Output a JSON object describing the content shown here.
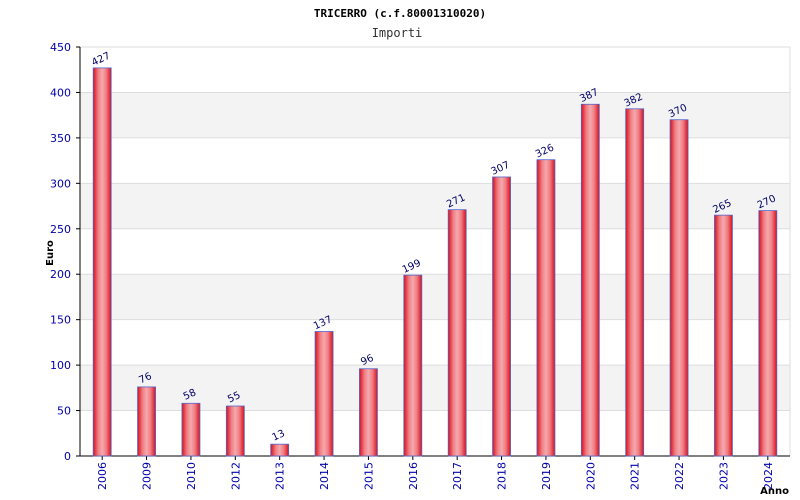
{
  "chart_data": {
    "type": "bar",
    "title": "TRICERRO (c.f.80001310020)",
    "subtitle": "Importi",
    "xlabel": "Anno",
    "ylabel": "Euro",
    "categories": [
      "2006",
      "2009",
      "2010",
      "2012",
      "2013",
      "2014",
      "2015",
      "2016",
      "2017",
      "2018",
      "2019",
      "2020",
      "2021",
      "2022",
      "2023",
      "2024"
    ],
    "values": [
      427,
      76,
      58,
      55,
      13,
      137,
      96,
      199,
      271,
      307,
      326,
      387,
      382,
      370,
      265,
      270
    ],
    "ylim": [
      0,
      450
    ],
    "yticks": [
      0,
      50,
      100,
      150,
      200,
      250,
      300,
      350,
      400,
      450
    ],
    "grid": true,
    "colors": {
      "bar": "#e8111d",
      "bar_highlight": "#f2a5a8",
      "bar_edge": "#5566cc",
      "band": "#f3f3f3",
      "grid": "#dddddd",
      "tick_text": "#0000aa",
      "label_text": "#000066"
    }
  }
}
